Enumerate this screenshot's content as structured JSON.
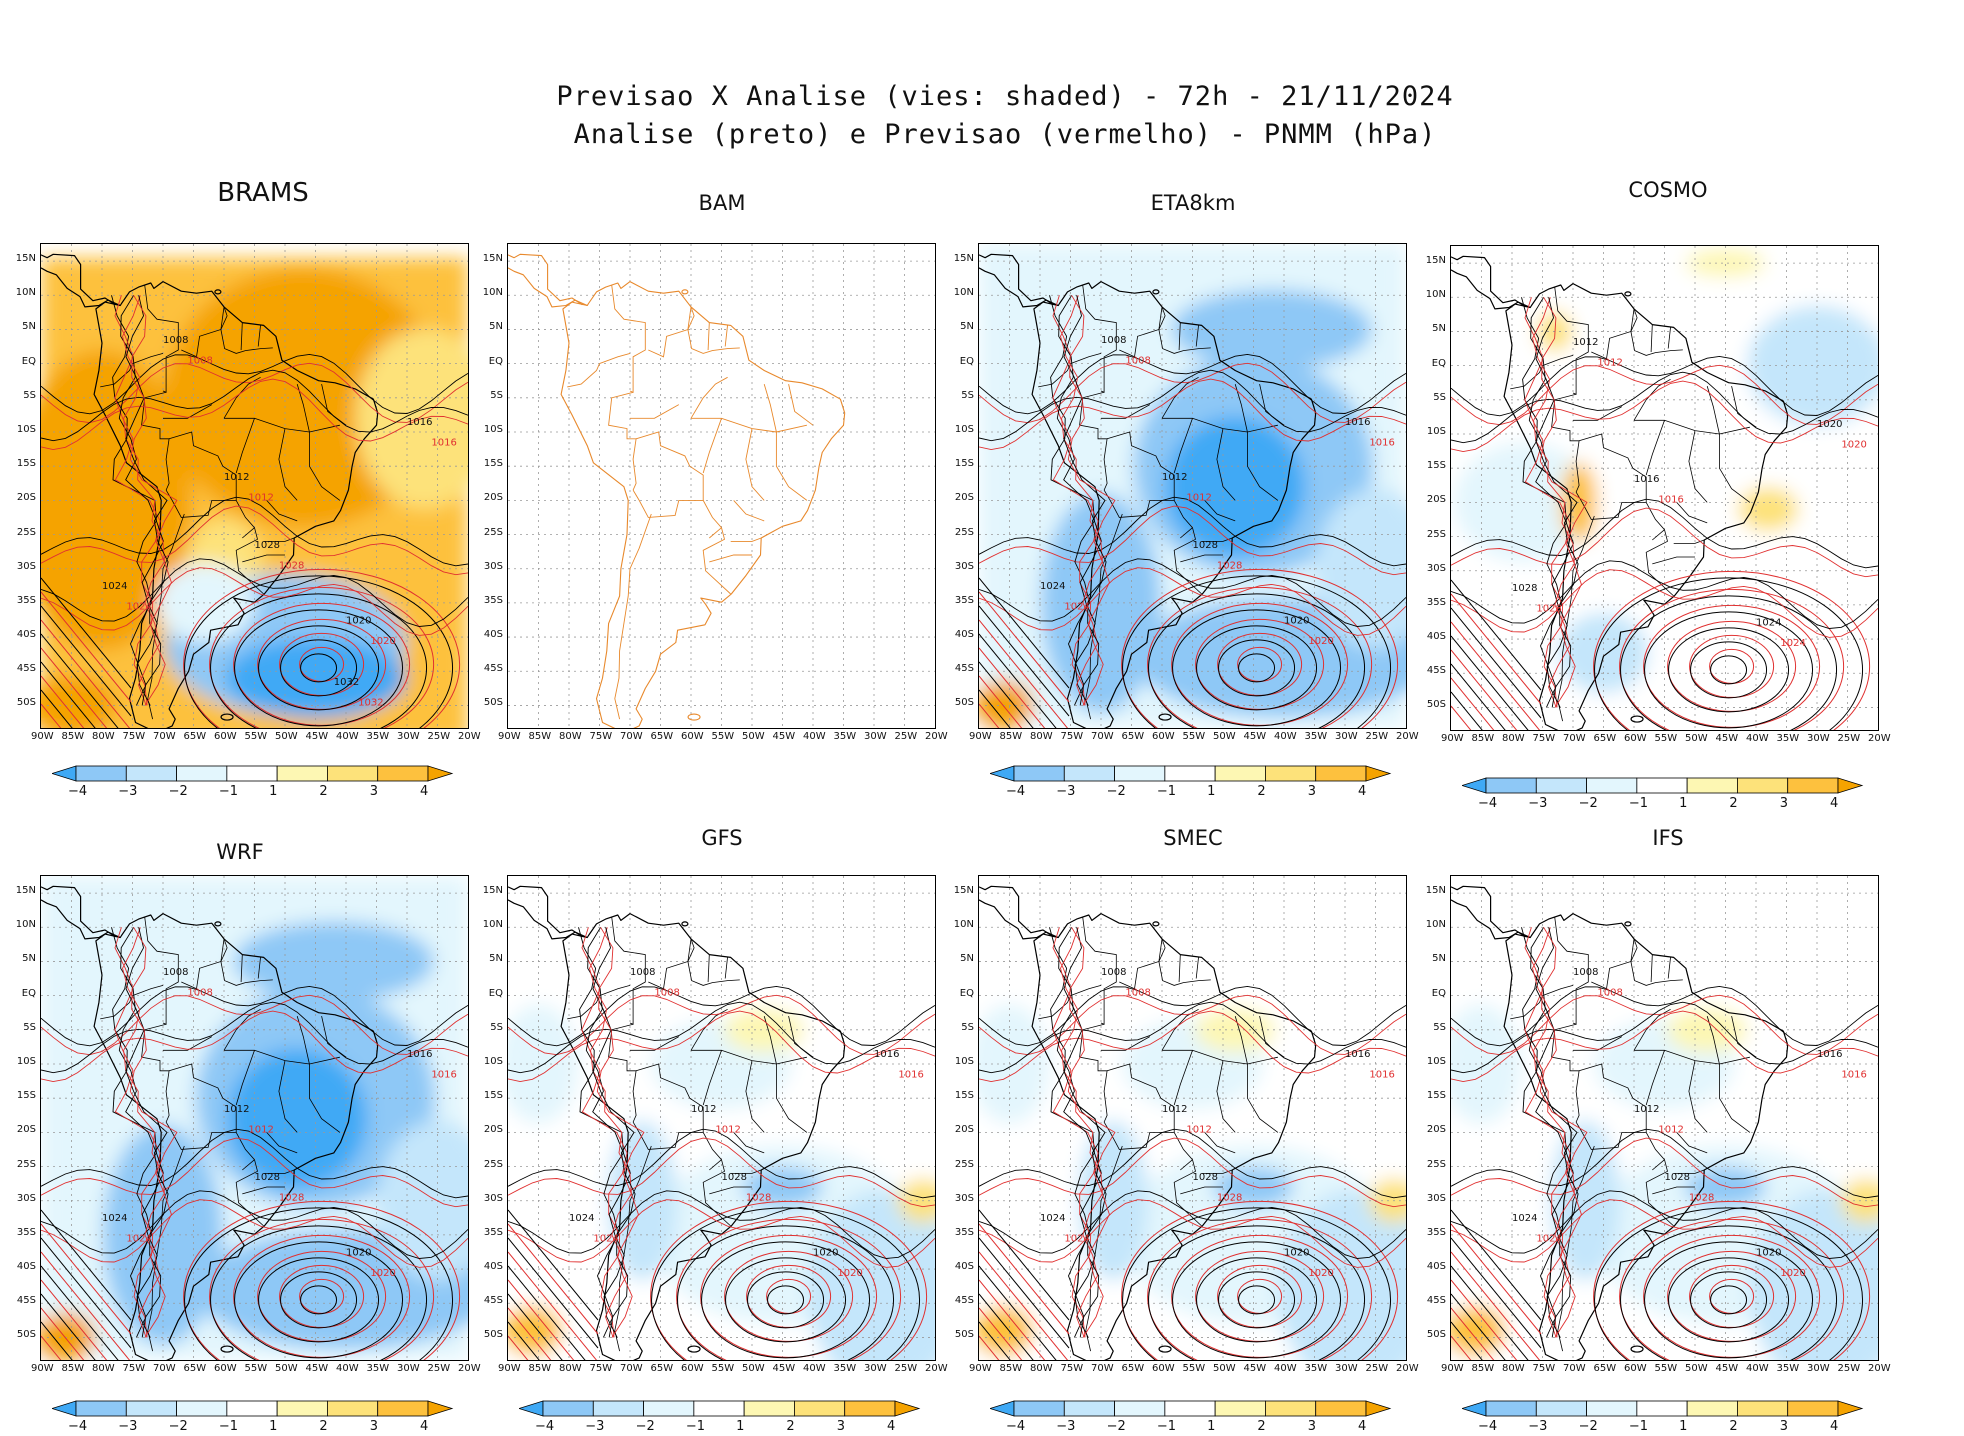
{
  "figure": {
    "title_line1": "Previsao X Analise (vies: shaded) - 72h - 21/11/2024",
    "title_line2": "Analise (preto) e Previsao (vermelho) - PNMM (hPa)"
  },
  "axes": {
    "lat_labels": [
      "15N",
      "10N",
      "5N",
      "EQ",
      "5S",
      "10S",
      "15S",
      "20S",
      "25S",
      "30S",
      "35S",
      "40S",
      "45S",
      "50S"
    ],
    "lon_labels": [
      "90W",
      "85W",
      "80W",
      "75W",
      "70W",
      "65W",
      "60W",
      "55W",
      "50W",
      "45W",
      "40W",
      "35W",
      "30W",
      "25W",
      "20W"
    ]
  },
  "colorbar": {
    "tick_labels": [
      "-4",
      "-3",
      "-2",
      "-1",
      "1",
      "2",
      "3",
      "4"
    ],
    "colors": [
      "#3fa9f5",
      "#8ec8f6",
      "#c4e6fb",
      "#e3f6fd",
      "#ffffff",
      "#fdf7b3",
      "#fde27a",
      "#fdc13e",
      "#f5a300"
    ]
  },
  "colors": {
    "analysis_contour": "#000000",
    "forecast_contour": "#e03030",
    "coastline_bam": "#e8892c",
    "grid": "#999999"
  },
  "panels": [
    {
      "title": "BRAMS",
      "bias": "warm",
      "show_colorbar": true,
      "coast_only": false,
      "contour_labels": [
        "1008",
        "1012",
        "1016",
        "1020",
        "1024",
        "1028",
        "1032"
      ]
    },
    {
      "title": "BAM",
      "bias": "none",
      "show_colorbar": false,
      "coast_only": true,
      "contour_labels": []
    },
    {
      "title": "ETA8km",
      "bias": "cold",
      "show_colorbar": true,
      "coast_only": false,
      "contour_labels": [
        "1008",
        "1012",
        "1016",
        "1020",
        "1024",
        "1028"
      ]
    },
    {
      "title": "COSMO",
      "bias": "mixed",
      "show_colorbar": true,
      "coast_only": false,
      "contour_labels": [
        "1012",
        "1016",
        "1020",
        "1024",
        "1028"
      ]
    },
    {
      "title": "WRF",
      "bias": "cold",
      "show_colorbar": true,
      "coast_only": false,
      "contour_labels": [
        "1008",
        "1012",
        "1016",
        "1020",
        "1024",
        "1028"
      ]
    },
    {
      "title": "GFS",
      "bias": "slightcold",
      "show_colorbar": true,
      "coast_only": false,
      "contour_labels": [
        "1008",
        "1012",
        "1016",
        "1020",
        "1024",
        "1028"
      ]
    },
    {
      "title": "SMEC",
      "bias": "slightcold",
      "show_colorbar": true,
      "coast_only": false,
      "contour_labels": [
        "1008",
        "1012",
        "1016",
        "1020",
        "1024",
        "1028"
      ]
    },
    {
      "title": "IFS",
      "bias": "slightcold",
      "show_colorbar": true,
      "coast_only": false,
      "contour_labels": [
        "1008",
        "1012",
        "1016",
        "1020",
        "1024",
        "1028"
      ]
    }
  ]
}
